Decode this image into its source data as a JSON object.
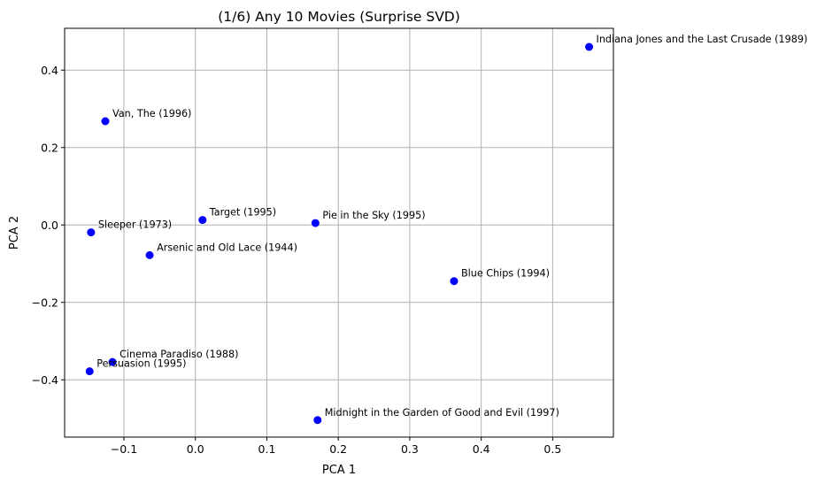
{
  "chart_data": {
    "type": "scatter",
    "title": "(1/6) Any 10 Movies (Surprise SVD)",
    "xlabel": "PCA 1",
    "ylabel": "PCA 2",
    "xlim": [
      -0.183,
      0.585
    ],
    "ylim": [
      -0.548,
      0.508
    ],
    "xticks": [
      -0.1,
      0.0,
      0.1,
      0.2,
      0.3,
      0.4,
      0.5
    ],
    "xtick_labels": [
      "−0.1",
      "0.0",
      "0.1",
      "0.2",
      "0.3",
      "0.4",
      "0.5"
    ],
    "yticks": [
      -0.4,
      -0.2,
      0.0,
      0.2,
      0.4
    ],
    "ytick_labels": [
      "−0.4",
      "−0.2",
      "0.0",
      "0.2",
      "0.4"
    ],
    "grid": true,
    "point_color": "#0000ff",
    "points": [
      {
        "label": "Indiana Jones and the Last Crusade (1989)",
        "x": 0.551,
        "y": 0.46
      },
      {
        "label": "Van, The (1996)",
        "x": -0.126,
        "y": 0.268
      },
      {
        "label": "Target (1995)",
        "x": 0.01,
        "y": 0.013
      },
      {
        "label": "Pie in the Sky (1995)",
        "x": 0.168,
        "y": 0.005
      },
      {
        "label": "Sleeper (1973)",
        "x": -0.146,
        "y": -0.019
      },
      {
        "label": "Arsenic and Old Lace (1944)",
        "x": -0.064,
        "y": -0.078
      },
      {
        "label": "Blue Chips (1994)",
        "x": 0.362,
        "y": -0.145
      },
      {
        "label": "Cinema Paradiso (1988)",
        "x": -0.116,
        "y": -0.354
      },
      {
        "label": "Persuasion (1995)",
        "x": -0.148,
        "y": -0.378
      },
      {
        "label": "Midnight in the Garden of Good and Evil (1997)",
        "x": 0.171,
        "y": -0.504
      }
    ]
  }
}
